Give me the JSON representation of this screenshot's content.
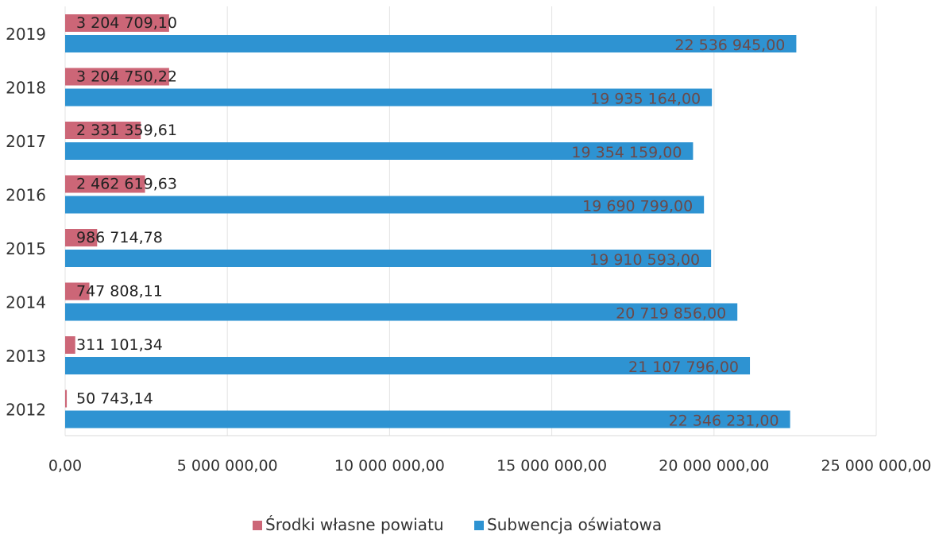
{
  "chart_data": {
    "type": "bar",
    "orientation": "horizontal",
    "categories": [
      "2019",
      "2018",
      "2017",
      "2016",
      "2015",
      "2014",
      "2013",
      "2012"
    ],
    "series": [
      {
        "name": "Środki własne powiatu",
        "color": "#cc6677",
        "values": [
          3204709.1,
          3204750.22,
          2331359.61,
          2462619.63,
          986714.78,
          747808.11,
          311101.34,
          50743.14
        ],
        "labels": [
          "3 204 709,10",
          "3 204 750,22",
          "2 331 359,61",
          "2 462 619,63",
          "986 714,78",
          "747 808,11",
          "311 101,34",
          "50 743,14"
        ]
      },
      {
        "name": "Subwencja oświatowa",
        "color": "#2e93d2",
        "values": [
          22536945.0,
          19935164.0,
          19354159.0,
          19690799.0,
          19910593.0,
          20719856.0,
          21107796.0,
          22346231.0
        ],
        "labels": [
          "22 536 945,00",
          "19 935 164,00",
          "19 354 159,00",
          "19 690 799,00",
          "19 910 593,00",
          "20 719 856,00",
          "21 107 796,00",
          "22 346 231,00"
        ]
      }
    ],
    "xlim": [
      0,
      25000000
    ],
    "xticks": [
      0,
      5000000,
      10000000,
      15000000,
      20000000,
      25000000
    ],
    "xtick_labels": [
      "0,00",
      "5 000 000,00",
      "10 000 000,00",
      "15 000 000,00",
      "20 000 000,00",
      "25 000 000,00"
    ],
    "title": "",
    "xlabel": "",
    "ylabel": "",
    "grid": true,
    "legend_position": "bottom"
  }
}
